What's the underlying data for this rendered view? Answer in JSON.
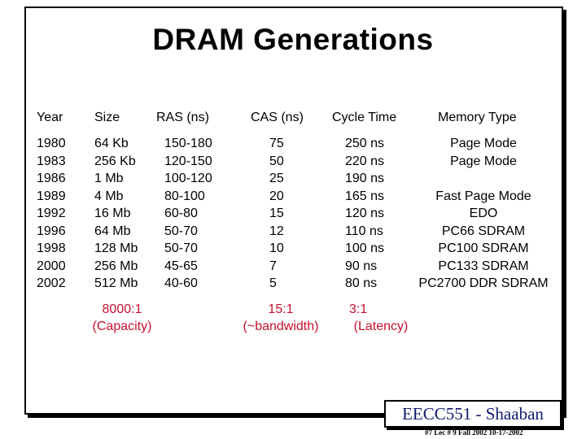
{
  "title": "DRAM Generations",
  "headers": {
    "year": "Year",
    "size": "Size",
    "ras": "RAS (ns)",
    "cas": "CAS (ns)",
    "cycle": "Cycle Time",
    "memtype": "Memory Type"
  },
  "rows": [
    {
      "year": "1980",
      "size": "64 Kb",
      "ras": "150-180",
      "cas": "75",
      "cycle": "250 ns",
      "memtype": "Page Mode"
    },
    {
      "year": "1983",
      "size": "256 Kb",
      "ras": "120-150",
      "cas": "50",
      "cycle": "220 ns",
      "memtype": "Page Mode"
    },
    {
      "year": "1986",
      "size": "1 Mb",
      "ras": "100-120",
      "cas": "25",
      "cycle": "190 ns",
      "memtype": ""
    },
    {
      "year": "1989",
      "size": "4 Mb",
      "ras": "80-100",
      "cas": "20",
      "cycle": "165 ns",
      "memtype": "Fast Page Mode"
    },
    {
      "year": "1992",
      "size": "16 Mb",
      "ras": "60-80",
      "cas": "15",
      "cycle": "120 ns",
      "memtype": "EDO"
    },
    {
      "year": "1996",
      "size": "64 Mb",
      "ras": "50-70",
      "cas": "12",
      "cycle": "110 ns",
      "memtype": "PC66 SDRAM"
    },
    {
      "year": "1998",
      "size": "128 Mb",
      "ras": "50-70",
      "cas": "10",
      "cycle": "100 ns",
      "memtype": "PC100 SDRAM"
    },
    {
      "year": "2000",
      "size": "256 Mb",
      "ras": "45-65",
      "cas": "7",
      "cycle": "90 ns",
      "memtype": "PC133 SDRAM"
    },
    {
      "year": "2002",
      "size": "512 Mb",
      "ras": "40-60",
      "cas": "5",
      "cycle": "80 ns",
      "memtype": "PC2700 DDR SDRAM"
    }
  ],
  "ratios": {
    "capacity": {
      "value": "8000:1",
      "label": "(Capacity)"
    },
    "bandwidth": {
      "value": "15:1",
      "label": "(~bandwidth)"
    },
    "latency": {
      "value": "3:1",
      "label": "(Latency)"
    }
  },
  "badge": "EECC551 - Shaaban",
  "footer": "#7   Lec # 9   Fall 2002  10-17-2002"
}
